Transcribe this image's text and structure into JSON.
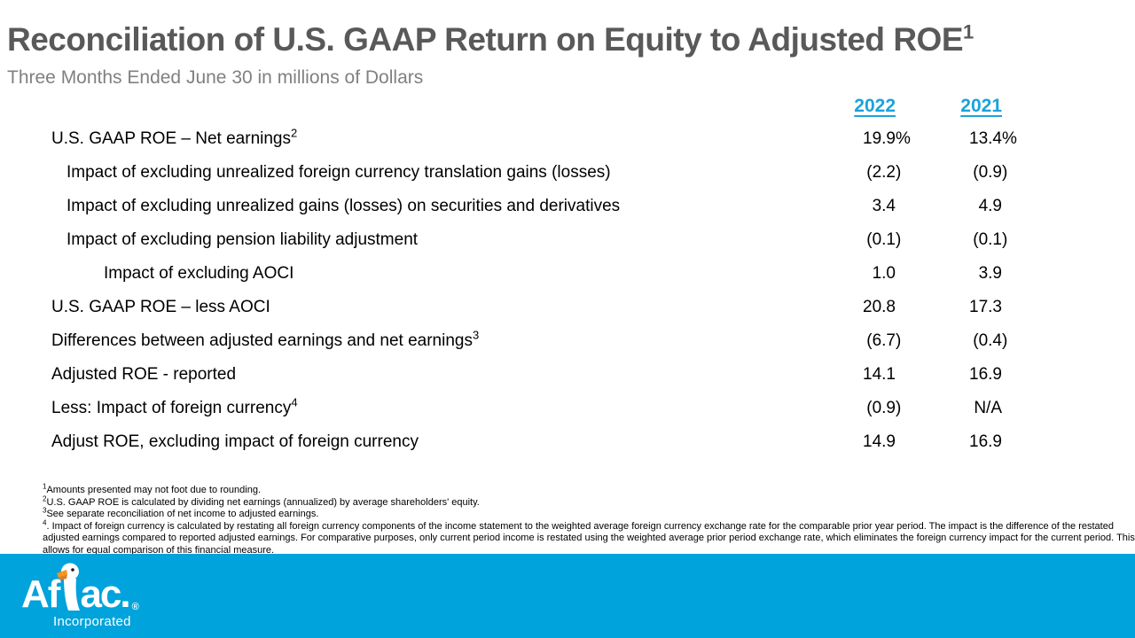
{
  "slide": {
    "title": {
      "text": "Reconciliation of U.S. GAAP Return on Equity to Adjusted ROE",
      "superscript": "1"
    },
    "subtitle": "Three Months Ended June 30 in millions of Dollars"
  },
  "table": {
    "columns": [
      "2022",
      "2021"
    ],
    "rows": [
      {
        "label": "U.S. GAAP ROE – Net earnings",
        "sup": "2",
        "indent": 0,
        "values": [
          "19.9%",
          "13.4%"
        ]
      },
      {
        "label": "Impact of excluding unrealized foreign currency translation gains (losses)",
        "sup": "",
        "indent": 1,
        "values": [
          "(2.2)",
          "(0.9)"
        ]
      },
      {
        "label": "Impact of excluding unrealized gains (losses) on securities and derivatives",
        "sup": "",
        "indent": 1,
        "values": [
          "3.4",
          "4.9"
        ]
      },
      {
        "label": "Impact of excluding pension liability adjustment",
        "sup": "",
        "indent": 1,
        "values": [
          "(0.1)",
          "(0.1)"
        ]
      },
      {
        "label": "Impact of excluding AOCI",
        "sup": "",
        "indent": 2,
        "values": [
          "1.0",
          "3.9"
        ]
      },
      {
        "label": "U.S. GAAP ROE – less AOCI",
        "sup": "",
        "indent": 0,
        "values": [
          "20.8",
          "17.3"
        ]
      },
      {
        "label": "Differences between adjusted earnings and net earnings",
        "sup": "3",
        "indent": 0,
        "values": [
          "(6.7)",
          "(0.4)"
        ]
      },
      {
        "label": "Adjusted ROE - reported",
        "sup": "",
        "indent": 0,
        "values": [
          "14.1",
          "16.9"
        ]
      },
      {
        "label": "Less: Impact of foreign currency",
        "sup": "4",
        "indent": 0,
        "values": [
          "(0.9)",
          "N/A"
        ]
      },
      {
        "label": "Adjust ROE, excluding impact of foreign currency",
        "sup": "",
        "indent": 0,
        "values": [
          "14.9",
          "16.9"
        ]
      }
    ]
  },
  "footnotes": [
    {
      "sup": "1",
      "text": "Amounts presented may not foot due to rounding."
    },
    {
      "sup": "2",
      "text": "U.S. GAAP ROE is calculated by dividing net earnings (annualized) by average shareholders' equity."
    },
    {
      "sup": "3",
      "text": "See separate reconciliation of net income to adjusted earnings."
    },
    {
      "sup": "4",
      "text": ". Impact of foreign currency is calculated by restating all foreign currency components of the income statement to the weighted average foreign currency exchange rate for the comparable prior year period. The impact is the difference of the restated adjusted earnings compared to reported adjusted earnings. For comparative purposes, only current period income is restated using the weighted average prior period exchange rate, which eliminates the foreign currency impact for the current period. This allows for equal comparison of this financial measure."
    }
  ],
  "footer": {
    "brand_part1": "Af",
    "brand_part2": "ac.",
    "registered": "®",
    "subtext": "Incorporated",
    "duck_icon": "duck-icon",
    "bar_color": "#00A3DC"
  },
  "colors": {
    "title_gray": "#595959",
    "subtitle_gray": "#808080",
    "header_blue": "#1BA2DB",
    "footer_blue": "#00A3DC",
    "beak_orange": "#F7941D"
  }
}
